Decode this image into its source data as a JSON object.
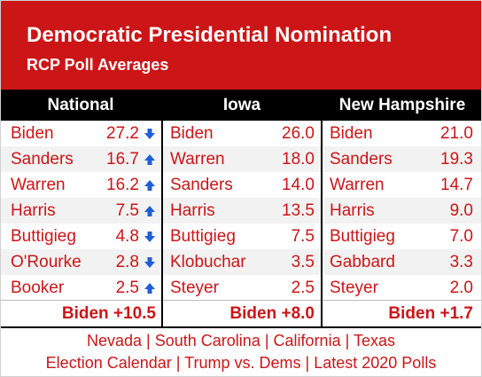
{
  "header": {
    "title": "Democratic Presidential Nomination",
    "subtitle": "RCP Poll Averages"
  },
  "columns": [
    {
      "heading": "National",
      "rows": [
        {
          "name": "Biden",
          "value": "27.2",
          "trend": "down"
        },
        {
          "name": "Sanders",
          "value": "16.7",
          "trend": "up"
        },
        {
          "name": "Warren",
          "value": "16.2",
          "trend": "up"
        },
        {
          "name": "Harris",
          "value": "7.5",
          "trend": "up"
        },
        {
          "name": "Buttigieg",
          "value": "4.8",
          "trend": "down"
        },
        {
          "name": "O'Rourke",
          "value": "2.8",
          "trend": "down"
        },
        {
          "name": "Booker",
          "value": "2.5",
          "trend": "up"
        }
      ],
      "summary": "Biden +10.5"
    },
    {
      "heading": "Iowa",
      "rows": [
        {
          "name": "Biden",
          "value": "26.0"
        },
        {
          "name": "Warren",
          "value": "18.0"
        },
        {
          "name": "Sanders",
          "value": "14.0"
        },
        {
          "name": "Harris",
          "value": "13.5"
        },
        {
          "name": "Buttigieg",
          "value": "7.5"
        },
        {
          "name": "Klobuchar",
          "value": "3.5"
        },
        {
          "name": "Steyer",
          "value": "2.5"
        }
      ],
      "summary": "Biden +8.0"
    },
    {
      "heading": "New Hampshire",
      "rows": [
        {
          "name": "Biden",
          "value": "21.0"
        },
        {
          "name": "Sanders",
          "value": "19.3"
        },
        {
          "name": "Warren",
          "value": "14.7"
        },
        {
          "name": "Harris",
          "value": "9.0"
        },
        {
          "name": "Buttigieg",
          "value": "7.0"
        },
        {
          "name": "Gabbard",
          "value": "3.3"
        },
        {
          "name": "Steyer",
          "value": "2.0"
        }
      ],
      "summary": "Biden +1.7"
    }
  ],
  "footer": {
    "line1": [
      "Nevada",
      "South Carolina",
      "California",
      "Texas"
    ],
    "line2": [
      "Election Calendar",
      "Trump vs. Dems",
      "Latest 2020 Polls"
    ],
    "separator": "|"
  },
  "colors": {
    "brand_red": "#cc1517",
    "arrow_blue": "#1f5fd6",
    "header_black": "#000000"
  },
  "icons": {
    "up": "arrow-up-icon",
    "down": "arrow-down-icon"
  }
}
